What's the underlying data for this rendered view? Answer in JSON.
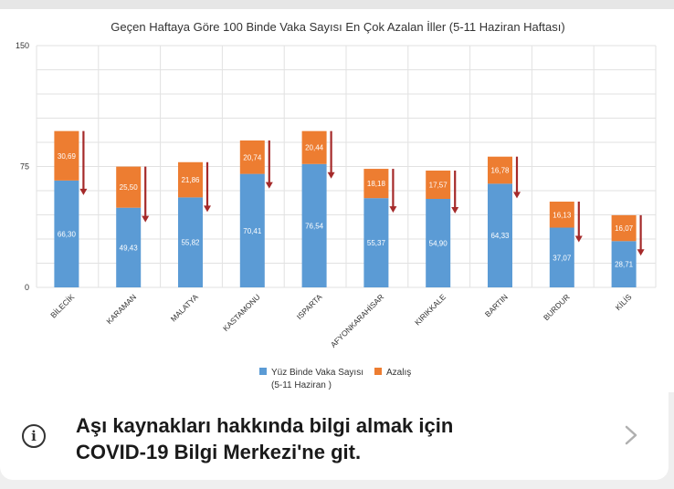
{
  "chart_data": {
    "type": "bar",
    "stacked": true,
    "title": "Geçen Haftaya Göre 100 Binde Vaka Sayısı En Çok Azalan İller (5-11 Haziran Haftası)",
    "categories": [
      "BİLECİK",
      "KARAMAN",
      "MALATYA",
      "KASTAMONU",
      "ISPARTA",
      "AFYONKARAHİSAR",
      "KIRIKKALE",
      "BARTIN",
      "BURDUR",
      "KİLİS"
    ],
    "series": [
      {
        "name": "Yüz Binde Vaka Sayısı",
        "values": [
          66.3,
          49.43,
          55.82,
          70.41,
          76.54,
          55.37,
          54.9,
          64.33,
          37.07,
          28.71
        ],
        "labels": [
          "66,30",
          "49,43",
          "55,82",
          "70,41",
          "76,54",
          "55,37",
          "54,90",
          "64,33",
          "37,07",
          "28,71"
        ],
        "color": "#5b9bd5"
      },
      {
        "name": "Azalış",
        "values": [
          30.69,
          25.5,
          21.86,
          20.74,
          20.44,
          18.18,
          17.57,
          16.78,
          16.13,
          16.07
        ],
        "labels": [
          "30,69",
          "25,50",
          "21,86",
          "20,74",
          "20,44",
          "18,18",
          "17,57",
          "16,78",
          "16,13",
          "16,07"
        ],
        "color": "#ed7d31"
      }
    ],
    "legend_note": "(5-11 Haziran )",
    "yticks": [
      "0",
      "75",
      "150"
    ],
    "ylim": [
      0,
      150
    ],
    "grid": true,
    "legend_position": "bottom",
    "arrow_color": "#a52a2a"
  },
  "banner": {
    "line1": "Aşı kaynakları hakkında bilgi almak için",
    "line2": "COVID-19 Bilgi Merkezi'ne git.",
    "info_glyph": "i",
    "icon": "info-icon",
    "chevron_icon": "chevron-right-icon"
  }
}
